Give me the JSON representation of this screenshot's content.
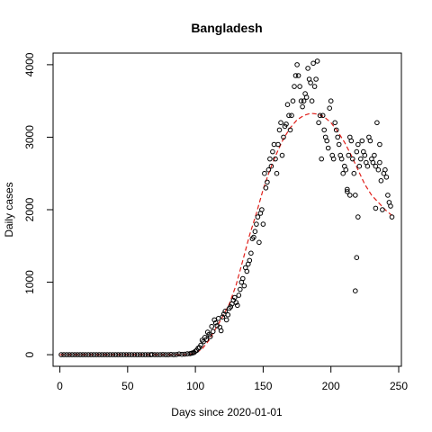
{
  "chart_data": {
    "type": "scatter",
    "title": "Bangladesh",
    "xlabel": "Days since 2020-01-01",
    "ylabel": "Daily cases",
    "xlim": [
      -5,
      252
    ],
    "ylim": [
      -160,
      4160
    ],
    "xticks": [
      0,
      50,
      100,
      150,
      200,
      250
    ],
    "yticks": [
      0,
      1000,
      2000,
      3000,
      4000
    ],
    "grid": false,
    "series": [
      {
        "points": [
          [
            1,
            0
          ],
          [
            3,
            0
          ],
          [
            5,
            0
          ],
          [
            7,
            0
          ],
          [
            9,
            0
          ],
          [
            11,
            0
          ],
          [
            13,
            0
          ],
          [
            15,
            0
          ],
          [
            17,
            0
          ],
          [
            19,
            0
          ],
          [
            21,
            0
          ],
          [
            23,
            0
          ],
          [
            25,
            0
          ],
          [
            27,
            0
          ],
          [
            29,
            0
          ],
          [
            31,
            0
          ],
          [
            33,
            0
          ],
          [
            35,
            0
          ],
          [
            37,
            0
          ],
          [
            39,
            0
          ],
          [
            41,
            0
          ],
          [
            43,
            0
          ],
          [
            45,
            0
          ],
          [
            47,
            0
          ],
          [
            49,
            0
          ],
          [
            51,
            0
          ],
          [
            53,
            0
          ],
          [
            55,
            0
          ],
          [
            57,
            0
          ],
          [
            59,
            0
          ],
          [
            61,
            0
          ],
          [
            63,
            0
          ],
          [
            65,
            0
          ],
          [
            67,
            0
          ],
          [
            68,
            3
          ],
          [
            70,
            0
          ],
          [
            72,
            0
          ],
          [
            74,
            0
          ],
          [
            76,
            2
          ],
          [
            78,
            0
          ],
          [
            80,
            0
          ],
          [
            82,
            4
          ],
          [
            84,
            0
          ],
          [
            86,
            3
          ],
          [
            88,
            10
          ],
          [
            90,
            5
          ],
          [
            92,
            8
          ],
          [
            94,
            12
          ],
          [
            96,
            15
          ],
          [
            97,
            20
          ],
          [
            98,
            25
          ],
          [
            99,
            30
          ],
          [
            100,
            48
          ],
          [
            101,
            60
          ],
          [
            102,
            90
          ],
          [
            103,
            100
          ],
          [
            104,
            130
          ],
          [
            105,
            200
          ],
          [
            106,
            180
          ],
          [
            107,
            240
          ],
          [
            108,
            210
          ],
          [
            109,
            310
          ],
          [
            110,
            280
          ],
          [
            111,
            250
          ],
          [
            112,
            390
          ],
          [
            113,
            320
          ],
          [
            114,
            480
          ],
          [
            115,
            440
          ],
          [
            116,
            400
          ],
          [
            117,
            500
          ],
          [
            118,
            380
          ],
          [
            119,
            330
          ],
          [
            120,
            520
          ],
          [
            121,
            560
          ],
          [
            122,
            600
          ],
          [
            123,
            480
          ],
          [
            124,
            550
          ],
          [
            125,
            640
          ],
          [
            126,
            660
          ],
          [
            127,
            700
          ],
          [
            128,
            750
          ],
          [
            129,
            790
          ],
          [
            130,
            720
          ],
          [
            131,
            680
          ],
          [
            132,
            820
          ],
          [
            133,
            900
          ],
          [
            134,
            1000
          ],
          [
            135,
            1050
          ],
          [
            136,
            950
          ],
          [
            137,
            1200
          ],
          [
            138,
            1150
          ],
          [
            139,
            1250
          ],
          [
            140,
            1300
          ],
          [
            141,
            1400
          ],
          [
            142,
            1600
          ],
          [
            143,
            1620
          ],
          [
            144,
            1700
          ],
          [
            145,
            1800
          ],
          [
            146,
            1900
          ],
          [
            147,
            1550
          ],
          [
            148,
            1950
          ],
          [
            149,
            2000
          ],
          [
            150,
            1800
          ],
          [
            151,
            2500
          ],
          [
            152,
            2300
          ],
          [
            153,
            2380
          ],
          [
            154,
            2550
          ],
          [
            155,
            2700
          ],
          [
            156,
            2600
          ],
          [
            157,
            2800
          ],
          [
            158,
            2900
          ],
          [
            159,
            2700
          ],
          [
            160,
            2500
          ],
          [
            161,
            2900
          ],
          [
            162,
            3100
          ],
          [
            163,
            3200
          ],
          [
            164,
            2750
          ],
          [
            165,
            3000
          ],
          [
            166,
            3150
          ],
          [
            167,
            3180
          ],
          [
            168,
            3450
          ],
          [
            169,
            3300
          ],
          [
            170,
            3100
          ],
          [
            171,
            3300
          ],
          [
            172,
            3500
          ],
          [
            173,
            3700
          ],
          [
            174,
            3850
          ],
          [
            175,
            4000
          ],
          [
            176,
            3850
          ],
          [
            177,
            3700
          ],
          [
            178,
            3500
          ],
          [
            179,
            3420
          ],
          [
            180,
            3500
          ],
          [
            181,
            3600
          ],
          [
            182,
            3550
          ],
          [
            183,
            3950
          ],
          [
            184,
            3800
          ],
          [
            185,
            3750
          ],
          [
            186,
            3500
          ],
          [
            187,
            4020
          ],
          [
            188,
            3700
          ],
          [
            189,
            3800
          ],
          [
            190,
            4050
          ],
          [
            191,
            3200
          ],
          [
            192,
            3300
          ],
          [
            193,
            2700
          ],
          [
            194,
            3300
          ],
          [
            195,
            3100
          ],
          [
            196,
            3000
          ],
          [
            197,
            2950
          ],
          [
            198,
            2850
          ],
          [
            199,
            3400
          ],
          [
            200,
            3500
          ],
          [
            201,
            2750
          ],
          [
            202,
            2700
          ],
          [
            203,
            3200
          ],
          [
            204,
            3100
          ],
          [
            205,
            3000
          ],
          [
            206,
            2900
          ],
          [
            207,
            2750
          ],
          [
            208,
            2700
          ],
          [
            209,
            2500
          ],
          [
            210,
            2600
          ],
          [
            211,
            2550
          ],
          [
            212,
            2250
          ],
          [
            213,
            2750
          ],
          [
            214,
            3000
          ],
          [
            215,
            2950
          ],
          [
            216,
            2700
          ],
          [
            217,
            2500
          ],
          [
            218,
            2200
          ],
          [
            219,
            2800
          ],
          [
            220,
            2900
          ],
          [
            221,
            2600
          ],
          [
            222,
            2700
          ],
          [
            223,
            2950
          ],
          [
            224,
            2800
          ],
          [
            225,
            2750
          ],
          [
            226,
            2650
          ],
          [
            227,
            2600
          ],
          [
            228,
            3000
          ],
          [
            229,
            2950
          ],
          [
            230,
            2700
          ],
          [
            231,
            2650
          ],
          [
            232,
            2750
          ],
          [
            233,
            2600
          ],
          [
            234,
            3200
          ],
          [
            235,
            2550
          ],
          [
            236,
            2650
          ],
          [
            237,
            2400
          ],
          [
            238,
            2000
          ],
          [
            239,
            2500
          ],
          [
            240,
            2550
          ],
          [
            241,
            2450
          ],
          [
            242,
            2200
          ],
          [
            243,
            2100
          ],
          [
            244,
            2050
          ],
          [
            245,
            1900
          ],
          [
            218,
            880
          ],
          [
            219,
            1340
          ],
          [
            220,
            1900
          ],
          [
            214,
            2200
          ],
          [
            212,
            2280
          ],
          [
            236,
            2900
          ],
          [
            233,
            2020
          ]
        ]
      },
      {
        "type": "line",
        "style": "dashed",
        "color": "#e0201b",
        "points": [
          [
            0,
            0
          ],
          [
            20,
            0
          ],
          [
            40,
            0
          ],
          [
            60,
            0
          ],
          [
            80,
            0
          ],
          [
            90,
            0
          ],
          [
            95,
            5
          ],
          [
            100,
            20
          ],
          [
            105,
            80
          ],
          [
            110,
            200
          ],
          [
            115,
            360
          ],
          [
            120,
            520
          ],
          [
            125,
            700
          ],
          [
            130,
            960
          ],
          [
            135,
            1300
          ],
          [
            140,
            1650
          ],
          [
            145,
            1950
          ],
          [
            150,
            2280
          ],
          [
            155,
            2550
          ],
          [
            160,
            2780
          ],
          [
            165,
            2980
          ],
          [
            170,
            3130
          ],
          [
            175,
            3240
          ],
          [
            180,
            3300
          ],
          [
            185,
            3330
          ],
          [
            190,
            3320
          ],
          [
            195,
            3280
          ],
          [
            200,
            3200
          ],
          [
            205,
            3080
          ],
          [
            210,
            2930
          ],
          [
            215,
            2750
          ],
          [
            220,
            2550
          ],
          [
            225,
            2350
          ],
          [
            230,
            2200
          ],
          [
            235,
            2100
          ],
          [
            240,
            2000
          ],
          [
            245,
            1920
          ]
        ]
      }
    ]
  }
}
